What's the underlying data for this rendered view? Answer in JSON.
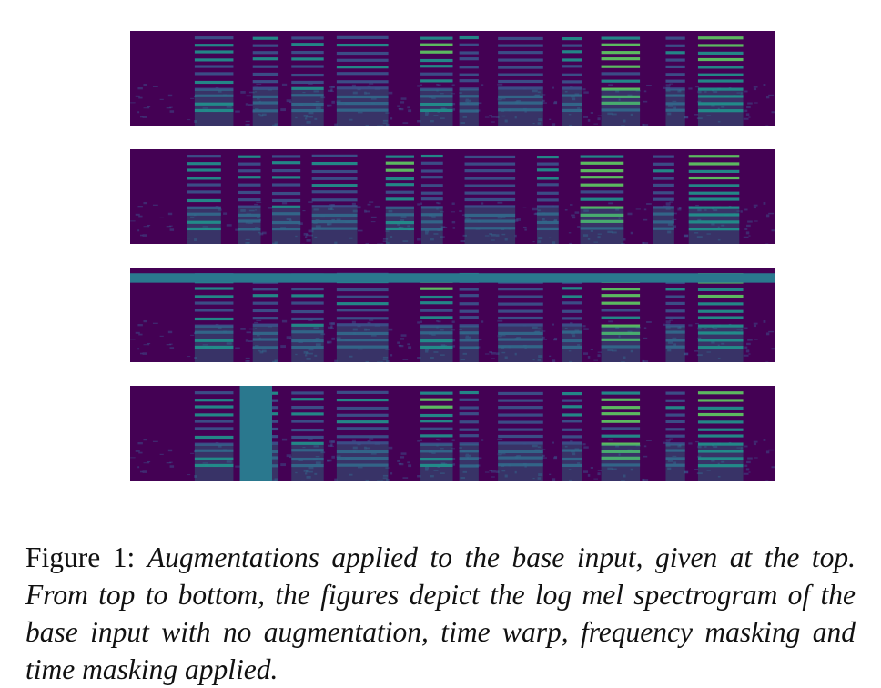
{
  "figure": {
    "caption_label": "Figure 1:",
    "caption_text": "Augmentations applied to the base input, given at the top. From top to bottom, the figures depict the log mel spectrogram of the base input with no augmentation, time warp, frequency masking and time masking applied.",
    "colors": {
      "background": "#440154",
      "mask": "#2a788e",
      "colormap": [
        "#440154",
        "#3b528b",
        "#21918c",
        "#5ec962",
        "#fde725"
      ]
    },
    "panels": [
      {
        "name": "base-input",
        "augmentation": "none"
      },
      {
        "name": "time-warp",
        "augmentation": "time warp"
      },
      {
        "name": "frequency-masking",
        "augmentation": "frequency masking",
        "mask_band": [
          0.06,
          0.16
        ]
      },
      {
        "name": "time-masking",
        "augmentation": "time masking",
        "mask_band": [
          0.17,
          0.22
        ]
      }
    ]
  }
}
